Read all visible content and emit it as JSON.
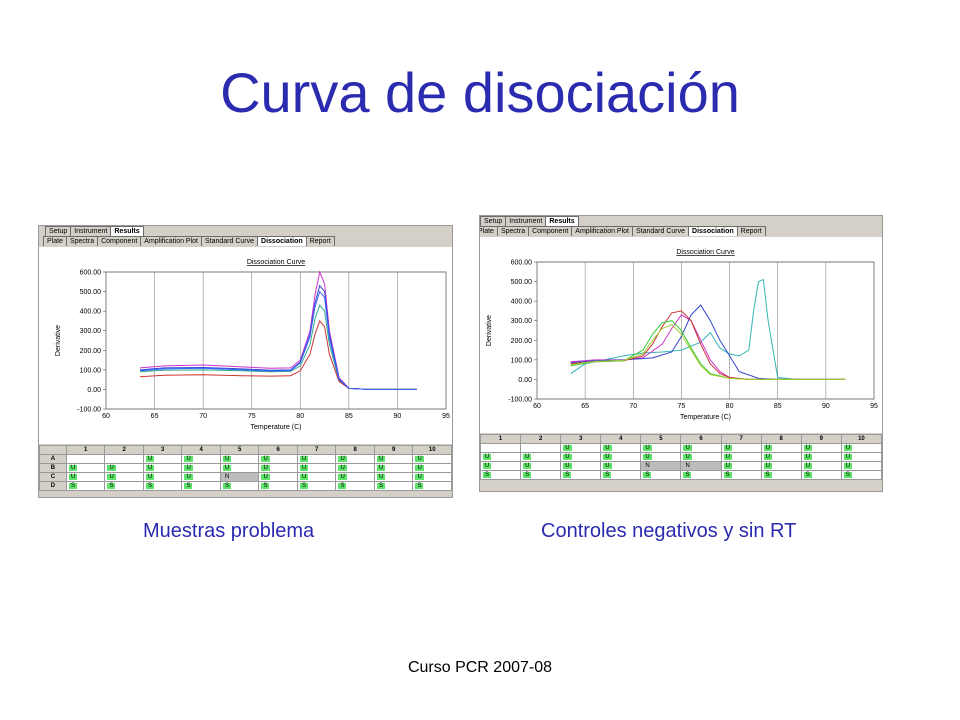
{
  "slide": {
    "title": "Curva de disociación",
    "caption_left": "Muestras problema",
    "caption_right": "Controles negativos y sin RT",
    "footer": "Curso PCR 2007-08"
  },
  "app": {
    "top_tabs": [
      "Setup",
      "Instrument",
      "Results"
    ],
    "top_tabs_active": "Results",
    "sub_tabs": [
      "Plate",
      "Spectra",
      "Component",
      "Amplification Plot",
      "Standard Curve",
      "Dissociation",
      "Report"
    ],
    "sub_tabs_active": "Dissociation",
    "grid_columns": [
      "1",
      "2",
      "3",
      "4",
      "5",
      "6",
      "7",
      "8",
      "9",
      "10"
    ]
  },
  "chart_data": [
    {
      "type": "line",
      "title": "Dissociation Curve",
      "xlabel": "Temperature (C)",
      "ylabel": "Derivative",
      "xlim": [
        60,
        95
      ],
      "ylim": [
        -100,
        600
      ],
      "xticks": [
        60,
        65,
        70,
        75,
        80,
        85,
        90,
        95
      ],
      "yticks": [
        "-100.00",
        "0.00",
        "100.00",
        "200.00",
        "300.00",
        "400.00",
        "500.00",
        "600.00"
      ],
      "grid": "vertical",
      "series": [
        {
          "color": "#cc33cc",
          "x": [
            63.5,
            66,
            70,
            74,
            77,
            79,
            80,
            81,
            81.5,
            82,
            82.5,
            83,
            84,
            85,
            87,
            92
          ],
          "y": [
            110,
            120,
            125,
            115,
            108,
            110,
            150,
            300,
            480,
            600,
            540,
            300,
            60,
            5,
            0,
            0
          ]
        },
        {
          "color": "#3344cc",
          "x": [
            63.5,
            66,
            70,
            74,
            77,
            79,
            80,
            81,
            81.5,
            82,
            82.5,
            83,
            84,
            85,
            87,
            92
          ],
          "y": [
            100,
            110,
            112,
            105,
            98,
            100,
            140,
            280,
            440,
            530,
            500,
            280,
            55,
            5,
            0,
            0
          ]
        },
        {
          "color": "#33aa88",
          "x": [
            63.5,
            66,
            70,
            74,
            77,
            79,
            80,
            81,
            81.5,
            82,
            82.5,
            83,
            84,
            85,
            87,
            92
          ],
          "y": [
            90,
            98,
            100,
            95,
            90,
            92,
            120,
            230,
            360,
            430,
            400,
            230,
            45,
            5,
            0,
            0
          ]
        },
        {
          "color": "#cc3333",
          "x": [
            63.5,
            66,
            70,
            74,
            77,
            79,
            80,
            81,
            81.5,
            82,
            82.5,
            83,
            84,
            85,
            87,
            92
          ],
          "y": [
            65,
            72,
            75,
            70,
            68,
            70,
            95,
            180,
            280,
            350,
            320,
            180,
            40,
            5,
            0,
            0
          ]
        },
        {
          "color": "#3366ff",
          "x": [
            63.5,
            66,
            70,
            74,
            77,
            79,
            80,
            81,
            81.5,
            82,
            82.5,
            83,
            84,
            85,
            87,
            92
          ],
          "y": [
            95,
            105,
            108,
            100,
            94,
            96,
            135,
            270,
            420,
            500,
            470,
            260,
            50,
            5,
            0,
            0
          ]
        }
      ]
    },
    {
      "type": "line",
      "title": "Dissociation Curve",
      "xlabel": "Temperature (C)",
      "ylabel": "Derivative",
      "xlim": [
        60,
        95
      ],
      "ylim": [
        -100,
        600
      ],
      "xticks": [
        60,
        65,
        70,
        75,
        80,
        85,
        90,
        95
      ],
      "yticks": [
        "-100.00",
        "0.00",
        "100.00",
        "200.00",
        "300.00",
        "400.00",
        "500.00",
        "600.00"
      ],
      "grid": "vertical",
      "series": [
        {
          "color": "#33b5b5",
          "x": [
            63.5,
            65,
            67,
            69,
            71,
            73,
            75,
            77,
            78,
            79,
            80,
            81,
            82,
            82.5,
            83,
            83.5,
            84,
            85,
            87,
            92
          ],
          "y": [
            30,
            80,
            100,
            120,
            135,
            140,
            150,
            190,
            240,
            160,
            130,
            120,
            150,
            350,
            500,
            510,
            300,
            10,
            0,
            0
          ]
        },
        {
          "color": "#cc33cc",
          "x": [
            63.5,
            66,
            69,
            71,
            73,
            74,
            75,
            76,
            77,
            78,
            79,
            80,
            82,
            85,
            92
          ],
          "y": [
            90,
            100,
            100,
            110,
            180,
            260,
            330,
            300,
            200,
            100,
            40,
            10,
            0,
            0,
            0
          ]
        },
        {
          "color": "#3344cc",
          "x": [
            63.5,
            66,
            69,
            72,
            74,
            75,
            76,
            77,
            78,
            79,
            80,
            81,
            83,
            85,
            92
          ],
          "y": [
            85,
            95,
            100,
            110,
            140,
            220,
            330,
            380,
            300,
            200,
            120,
            40,
            5,
            0,
            0
          ]
        },
        {
          "color": "#cc3333",
          "x": [
            63.5,
            66,
            69,
            71,
            72,
            73,
            74,
            75,
            76,
            77,
            78,
            79,
            80,
            82,
            92
          ],
          "y": [
            80,
            90,
            95,
            120,
            180,
            270,
            340,
            350,
            300,
            180,
            80,
            30,
            10,
            0,
            0
          ]
        },
        {
          "color": "#33cc33",
          "x": [
            63.5,
            66,
            69,
            71,
            72,
            73,
            74,
            75,
            76,
            77,
            78,
            80,
            82,
            92
          ],
          "y": [
            70,
            90,
            95,
            150,
            230,
            290,
            300,
            250,
            160,
            80,
            30,
            5,
            0,
            0
          ]
        },
        {
          "color": "#aacc33",
          "x": [
            63.5,
            66,
            69,
            71,
            72,
            73,
            74,
            75,
            76,
            77,
            78,
            80,
            82,
            92
          ],
          "y": [
            75,
            92,
            97,
            130,
            200,
            260,
            280,
            230,
            150,
            70,
            25,
            5,
            0,
            0
          ]
        }
      ]
    }
  ],
  "plate_left": [
    [
      "A",
      "",
      "",
      "U",
      "U",
      "U",
      "U",
      "U",
      "U",
      "U",
      "U"
    ],
    [
      "B",
      "U",
      "U",
      "U",
      "U",
      "U",
      "U",
      "U",
      "U",
      "U",
      "U"
    ],
    [
      "C",
      "U",
      "U",
      "U",
      "U",
      "N",
      "U",
      "U",
      "U",
      "U",
      "U"
    ],
    [
      "D",
      "S",
      "S",
      "S",
      "S",
      "S",
      "S",
      "S",
      "S",
      "S",
      "S"
    ]
  ],
  "plate_right": [
    [
      "",
      "",
      "U",
      "U",
      "U",
      "U",
      "U",
      "U",
      "U",
      "U",
      "U"
    ],
    [
      "U",
      "U",
      "U",
      "U",
      "U",
      "U",
      "U",
      "U",
      "U",
      "U",
      "U"
    ],
    [
      "U",
      "U",
      "U",
      "U",
      "N",
      "N",
      "U",
      "U",
      "U",
      "U",
      ""
    ],
    [
      "S",
      "S",
      "S",
      "S",
      "S",
      "S",
      "S",
      "S",
      "S",
      "S",
      ""
    ]
  ]
}
